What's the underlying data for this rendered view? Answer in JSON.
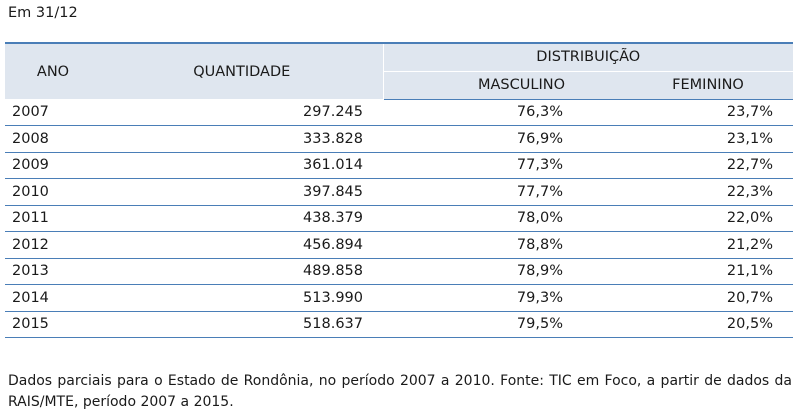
{
  "caption": "Em 31/12",
  "table": {
    "headers": {
      "ano": "ANO",
      "quantidade": "QUANTIDADE",
      "distribuicao": "DISTRIBUIÇÃO",
      "masculino": "MASCULINO",
      "feminino": "FEMININO"
    },
    "rows": [
      {
        "ano": "2007",
        "quantidade": "297.245",
        "masculino": "76,3%",
        "feminino": "23,7%"
      },
      {
        "ano": "2008",
        "quantidade": "333.828",
        "masculino": "76,9%",
        "feminino": "23,1%"
      },
      {
        "ano": "2009",
        "quantidade": "361.014",
        "masculino": "77,3%",
        "feminino": "22,7%"
      },
      {
        "ano": "2010",
        "quantidade": "397.845",
        "masculino": "77,7%",
        "feminino": "22,3%"
      },
      {
        "ano": "2011",
        "quantidade": "438.379",
        "masculino": "78,0%",
        "feminino": "22,0%"
      },
      {
        "ano": "2012",
        "quantidade": "456.894",
        "masculino": "78,8%",
        "feminino": "21,2%"
      },
      {
        "ano": "2013",
        "quantidade": "489.858",
        "masculino": "78,9%",
        "feminino": "21,1%"
      },
      {
        "ano": "2014",
        "quantidade": "513.990",
        "masculino": "79,3%",
        "feminino": "20,7%"
      },
      {
        "ano": "2015",
        "quantidade": "518.637",
        "masculino": "79,5%",
        "feminino": "20,5%"
      }
    ]
  },
  "note": "Dados parciais para o Estado de Rondônia, no período 2007 a 2010. Fonte: TIC em Foco, a partir de dados da RAIS/MTE, período 2007 a 2015.",
  "colors": {
    "header_background": "#dfe6ef",
    "rule_color": "#4a7eb7",
    "text": "#1a1a1a"
  }
}
